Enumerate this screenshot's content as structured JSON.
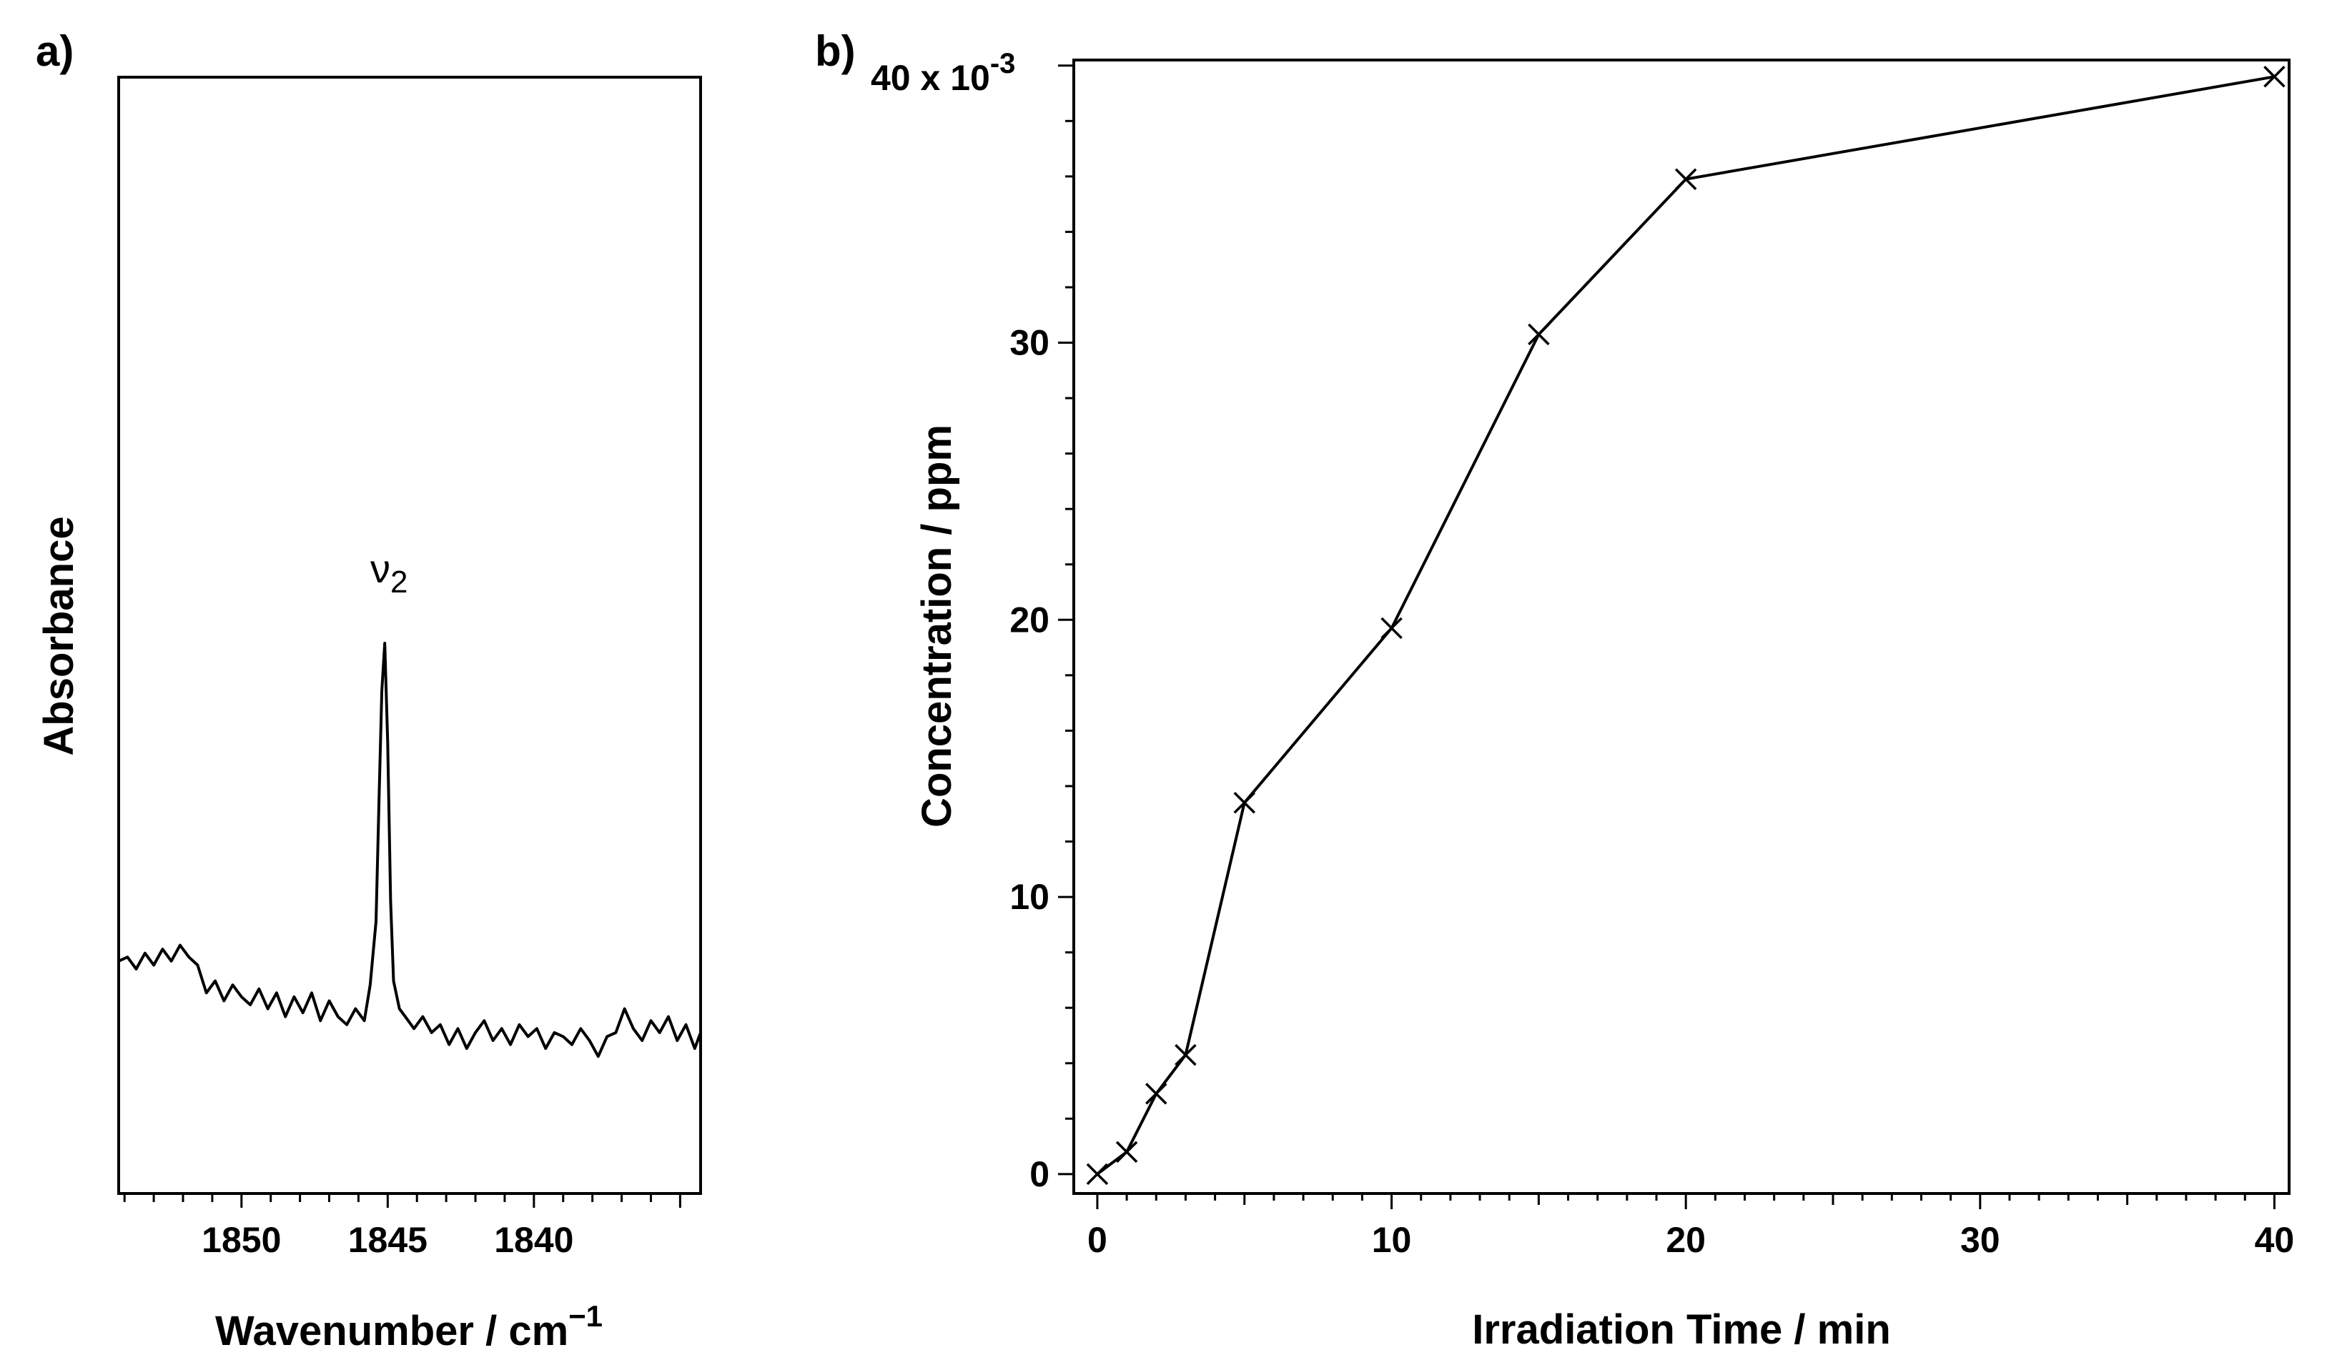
{
  "chart_data": [
    {
      "panel_label": "a)",
      "type": "line",
      "title": "",
      "xlabel": "Wavenumber / cm",
      "xlabel_superscript": "−1",
      "ylabel": "Absorbance",
      "xlim": [
        1854.2,
        1834.3
      ],
      "xticks": [
        1850,
        1845,
        1840
      ],
      "xtick_labels": [
        "1850",
        "1845",
        "1840"
      ],
      "yticks": [],
      "grid": false,
      "annotation": {
        "base": "ν",
        "subscript": "2",
        "x": 1845.1
      },
      "series": [
        {
          "name": "spectrum",
          "x": [
            1854.2,
            1853.9,
            1853.6,
            1853.3,
            1853.0,
            1852.7,
            1852.4,
            1852.1,
            1851.8,
            1851.5,
            1851.2,
            1850.9,
            1850.6,
            1850.3,
            1850.0,
            1849.7,
            1849.4,
            1849.1,
            1848.8,
            1848.5,
            1848.2,
            1847.9,
            1847.6,
            1847.3,
            1847.0,
            1846.7,
            1846.4,
            1846.1,
            1845.8,
            1845.6,
            1845.4,
            1845.3,
            1845.2,
            1845.1,
            1845.0,
            1844.9,
            1844.8,
            1844.6,
            1844.4,
            1844.1,
            1843.8,
            1843.5,
            1843.2,
            1842.9,
            1842.6,
            1842.3,
            1842.0,
            1841.7,
            1841.4,
            1841.1,
            1840.8,
            1840.5,
            1840.2,
            1839.9,
            1839.6,
            1839.3,
            1839.0,
            1838.7,
            1838.4,
            1838.1,
            1837.8,
            1837.5,
            1837.2,
            1836.9,
            1836.6,
            1836.3,
            1836.0,
            1835.7,
            1835.4,
            1835.1,
            1834.8,
            1834.5,
            1834.3
          ],
          "y": [
            0.2,
            0.21,
            0.18,
            0.22,
            0.19,
            0.23,
            0.2,
            0.24,
            0.21,
            0.19,
            0.12,
            0.15,
            0.1,
            0.14,
            0.11,
            0.09,
            0.13,
            0.08,
            0.12,
            0.06,
            0.11,
            0.07,
            0.12,
            0.05,
            0.1,
            0.06,
            0.04,
            0.08,
            0.05,
            0.14,
            0.3,
            0.6,
            0.88,
            1.0,
            0.75,
            0.35,
            0.15,
            0.08,
            0.06,
            0.03,
            0.06,
            0.02,
            0.04,
            -0.01,
            0.03,
            -0.02,
            0.02,
            0.05,
            0.0,
            0.03,
            -0.01,
            0.04,
            0.01,
            0.03,
            -0.02,
            0.02,
            0.01,
            -0.01,
            0.03,
            0.0,
            -0.04,
            0.01,
            0.02,
            0.08,
            0.03,
            0.0,
            0.05,
            0.02,
            0.06,
            0.0,
            0.04,
            -0.02,
            0.02
          ]
        }
      ]
    },
    {
      "panel_label": "b)",
      "type": "line",
      "title": "",
      "xlabel": "Irradiation Time / min",
      "ylabel": "Concentration / ppm",
      "xlim": [
        -0.8,
        40.5
      ],
      "ylim": [
        -0.0007,
        0.0402
      ],
      "xticks": [
        0,
        10,
        20,
        30,
        40
      ],
      "xtick_labels": [
        "0",
        "10",
        "20",
        "30",
        "40"
      ],
      "yticks": [
        0,
        0.01,
        0.02,
        0.03,
        0.04
      ],
      "ytick_labels": [
        "0",
        "10",
        "20",
        "30",
        "40 x 10"
      ],
      "ytick_top_superscript": "-3",
      "grid": false,
      "series": [
        {
          "name": "concentration",
          "marker": "x",
          "x": [
            0,
            1,
            2,
            3,
            5,
            10,
            15,
            20,
            40
          ],
          "y": [
            0.0,
            0.0008,
            0.0029,
            0.0043,
            0.0134,
            0.0197,
            0.0303,
            0.0359,
            0.0396
          ]
        }
      ]
    }
  ]
}
